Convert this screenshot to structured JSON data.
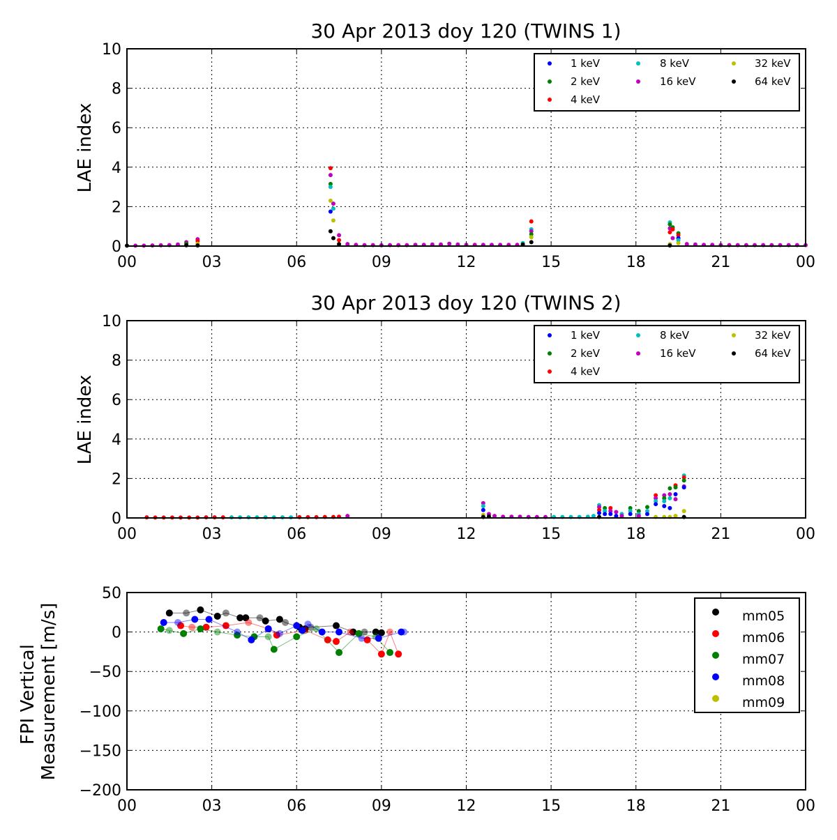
{
  "chart_data": [
    {
      "type": "scatter",
      "title": "30 Apr 2013 doy 120 (TWINS 1)",
      "ylabel": "LAE index",
      "ylim": [
        0,
        10
      ],
      "yticks": [
        "0",
        "2",
        "4",
        "6",
        "8",
        "10"
      ],
      "xlim": [
        0,
        24
      ],
      "xticks": [
        "00",
        "03",
        "06",
        "09",
        "12",
        "15",
        "18",
        "21",
        "00"
      ],
      "grid": true,
      "legend_position": "top-right",
      "series": [
        {
          "name": "1 keV",
          "color": "#0000ff"
        },
        {
          "name": "2 keV",
          "color": "#008000"
        },
        {
          "name": "4 keV",
          "color": "#ff0000"
        },
        {
          "name": "8 keV",
          "color": "#00bfbf"
        },
        {
          "name": "16 keV",
          "color": "#bf00bf"
        },
        {
          "name": "32 keV",
          "color": "#bfbf00"
        },
        {
          "name": "64 keV",
          "color": "#000000"
        }
      ],
      "points": [
        [
          0.0,
          0.02,
          6
        ],
        [
          0.3,
          0.02,
          4
        ],
        [
          0.6,
          0.02,
          4
        ],
        [
          0.9,
          0.03,
          4
        ],
        [
          1.2,
          0.04,
          4
        ],
        [
          1.5,
          0.05,
          4
        ],
        [
          1.8,
          0.08,
          4
        ],
        [
          2.1,
          0.2,
          4
        ],
        [
          2.1,
          0.12,
          1
        ],
        [
          2.1,
          0.04,
          6
        ],
        [
          2.5,
          0.35,
          4
        ],
        [
          2.5,
          0.25,
          2
        ],
        [
          2.5,
          0.12,
          5
        ],
        [
          2.5,
          0.03,
          6
        ],
        [
          7.2,
          3.95,
          2
        ],
        [
          7.2,
          3.6,
          4
        ],
        [
          7.2,
          3.15,
          1
        ],
        [
          7.2,
          3.0,
          3
        ],
        [
          7.2,
          2.3,
          5
        ],
        [
          7.2,
          1.75,
          0
        ],
        [
          7.2,
          0.75,
          6
        ],
        [
          7.3,
          2.15,
          4
        ],
        [
          7.3,
          1.9,
          3
        ],
        [
          7.3,
          1.3,
          5
        ],
        [
          7.3,
          0.4,
          6
        ],
        [
          7.5,
          0.55,
          4
        ],
        [
          7.5,
          0.3,
          2
        ],
        [
          7.5,
          0.1,
          6
        ],
        [
          7.8,
          0.1,
          4
        ],
        [
          8.1,
          0.06,
          4
        ],
        [
          8.4,
          0.05,
          4
        ],
        [
          8.7,
          0.05,
          4
        ],
        [
          9.0,
          0.04,
          4
        ],
        [
          9.3,
          0.05,
          4
        ],
        [
          9.6,
          0.05,
          4
        ],
        [
          9.9,
          0.05,
          4
        ],
        [
          10.2,
          0.06,
          4
        ],
        [
          10.5,
          0.06,
          4
        ],
        [
          10.8,
          0.08,
          4
        ],
        [
          11.1,
          0.08,
          4
        ],
        [
          11.4,
          0.12,
          4
        ],
        [
          11.7,
          0.08,
          4
        ],
        [
          12.0,
          0.06,
          4
        ],
        [
          12.3,
          0.06,
          4
        ],
        [
          12.6,
          0.06,
          4
        ],
        [
          12.9,
          0.06,
          4
        ],
        [
          13.2,
          0.06,
          4
        ],
        [
          13.5,
          0.06,
          4
        ],
        [
          13.8,
          0.06,
          4
        ],
        [
          14.0,
          0.15,
          3
        ],
        [
          14.0,
          0.08,
          6
        ],
        [
          14.3,
          1.25,
          2
        ],
        [
          14.3,
          0.85,
          3
        ],
        [
          14.3,
          0.75,
          4
        ],
        [
          14.3,
          0.6,
          1
        ],
        [
          14.3,
          0.45,
          5
        ],
        [
          14.3,
          0.2,
          6
        ],
        [
          19.2,
          1.2,
          3
        ],
        [
          19.2,
          1.1,
          1
        ],
        [
          19.2,
          0.9,
          4
        ],
        [
          19.2,
          0.7,
          2
        ],
        [
          19.2,
          0.1,
          5
        ],
        [
          19.2,
          0.03,
          6
        ],
        [
          19.3,
          0.95,
          1
        ],
        [
          19.3,
          0.85,
          2
        ],
        [
          19.3,
          0.4,
          4
        ],
        [
          19.5,
          0.65,
          1
        ],
        [
          19.5,
          0.55,
          2
        ],
        [
          19.5,
          0.4,
          0
        ],
        [
          19.5,
          0.3,
          3
        ],
        [
          19.5,
          0.15,
          5
        ],
        [
          19.8,
          0.1,
          4
        ],
        [
          20.1,
          0.08,
          4
        ],
        [
          20.4,
          0.06,
          4
        ],
        [
          20.7,
          0.06,
          4
        ],
        [
          21.0,
          0.05,
          4
        ],
        [
          21.3,
          0.05,
          4
        ],
        [
          21.6,
          0.05,
          4
        ],
        [
          21.9,
          0.05,
          4
        ],
        [
          22.2,
          0.05,
          4
        ],
        [
          22.5,
          0.05,
          4
        ],
        [
          22.8,
          0.05,
          4
        ],
        [
          23.1,
          0.05,
          4
        ],
        [
          23.4,
          0.05,
          4
        ],
        [
          23.7,
          0.05,
          4
        ],
        [
          24.0,
          0.05,
          4
        ]
      ]
    },
    {
      "type": "scatter",
      "title": "30 Apr 2013 doy 120 (TWINS 2)",
      "ylabel": "LAE index",
      "ylim": [
        0,
        10
      ],
      "yticks": [
        "0",
        "2",
        "4",
        "6",
        "8",
        "10"
      ],
      "xlim": [
        0,
        24
      ],
      "xticks": [
        "00",
        "03",
        "06",
        "09",
        "12",
        "15",
        "18",
        "21",
        "00"
      ],
      "grid": true,
      "legend_position": "top-right",
      "series": [
        {
          "name": "1 keV",
          "color": "#0000ff"
        },
        {
          "name": "2 keV",
          "color": "#008000"
        },
        {
          "name": "4 keV",
          "color": "#ff0000"
        },
        {
          "name": "8 keV",
          "color": "#00bfbf"
        },
        {
          "name": "16 keV",
          "color": "#bf00bf"
        },
        {
          "name": "32 keV",
          "color": "#bfbf00"
        },
        {
          "name": "64 keV",
          "color": "#000000"
        }
      ],
      "points": [
        [
          0.7,
          0.03,
          2
        ],
        [
          1.0,
          0.02,
          2
        ],
        [
          1.3,
          0.02,
          2
        ],
        [
          1.6,
          0.02,
          2
        ],
        [
          1.9,
          0.02,
          2
        ],
        [
          2.2,
          0.02,
          2
        ],
        [
          2.5,
          0.02,
          2
        ],
        [
          2.8,
          0.03,
          2
        ],
        [
          3.1,
          0.03,
          2
        ],
        [
          3.4,
          0.03,
          2
        ],
        [
          3.7,
          0.03,
          3
        ],
        [
          4.0,
          0.03,
          3
        ],
        [
          4.3,
          0.03,
          3
        ],
        [
          4.6,
          0.03,
          3
        ],
        [
          4.9,
          0.03,
          3
        ],
        [
          5.2,
          0.03,
          3
        ],
        [
          5.5,
          0.03,
          3
        ],
        [
          5.8,
          0.03,
          3
        ],
        [
          6.1,
          0.04,
          2
        ],
        [
          6.4,
          0.04,
          2
        ],
        [
          6.7,
          0.04,
          2
        ],
        [
          7.0,
          0.05,
          2
        ],
        [
          7.3,
          0.05,
          2
        ],
        [
          7.5,
          0.06,
          2
        ],
        [
          7.8,
          0.1,
          4
        ],
        [
          12.6,
          0.75,
          4
        ],
        [
          12.6,
          0.6,
          3
        ],
        [
          12.6,
          0.4,
          0
        ],
        [
          12.6,
          0.15,
          5
        ],
        [
          12.6,
          0.05,
          6
        ],
        [
          12.8,
          0.2,
          4
        ],
        [
          12.8,
          0.08,
          6
        ],
        [
          13.0,
          0.1,
          4
        ],
        [
          13.3,
          0.06,
          4
        ],
        [
          13.6,
          0.06,
          4
        ],
        [
          13.9,
          0.06,
          4
        ],
        [
          14.2,
          0.05,
          4
        ],
        [
          14.5,
          0.05,
          4
        ],
        [
          14.8,
          0.05,
          4
        ],
        [
          15.1,
          0.05,
          3
        ],
        [
          15.4,
          0.05,
          3
        ],
        [
          15.7,
          0.05,
          3
        ],
        [
          16.0,
          0.05,
          3
        ],
        [
          16.3,
          0.06,
          3
        ],
        [
          16.5,
          0.1,
          3
        ],
        [
          16.7,
          0.65,
          3
        ],
        [
          16.7,
          0.55,
          4
        ],
        [
          16.7,
          0.4,
          2
        ],
        [
          16.7,
          0.25,
          0
        ],
        [
          16.7,
          0.05,
          6
        ],
        [
          16.9,
          0.5,
          1
        ],
        [
          16.9,
          0.35,
          3
        ],
        [
          16.9,
          0.2,
          0
        ],
        [
          17.1,
          0.5,
          2
        ],
        [
          17.1,
          0.35,
          4
        ],
        [
          17.1,
          0.2,
          0
        ],
        [
          17.3,
          0.3,
          4
        ],
        [
          17.3,
          0.1,
          0
        ],
        [
          17.5,
          0.2,
          3
        ],
        [
          17.5,
          0.1,
          4
        ],
        [
          17.8,
          0.5,
          1
        ],
        [
          17.8,
          0.35,
          3
        ],
        [
          17.8,
          0.2,
          0
        ],
        [
          18.1,
          0.35,
          1
        ],
        [
          18.1,
          0.2,
          3
        ],
        [
          18.1,
          0.1,
          4
        ],
        [
          18.4,
          0.55,
          1
        ],
        [
          18.4,
          0.35,
          3
        ],
        [
          18.4,
          0.2,
          0
        ],
        [
          18.7,
          1.15,
          2
        ],
        [
          18.7,
          1.0,
          4
        ],
        [
          18.7,
          0.85,
          3
        ],
        [
          18.7,
          0.7,
          0
        ],
        [
          18.7,
          0.05,
          5
        ],
        [
          19.0,
          1.15,
          4
        ],
        [
          19.0,
          1.0,
          1
        ],
        [
          19.0,
          0.85,
          3
        ],
        [
          19.0,
          0.6,
          0
        ],
        [
          19.0,
          0.05,
          5
        ],
        [
          19.2,
          1.5,
          1
        ],
        [
          19.2,
          1.2,
          4
        ],
        [
          19.2,
          1.0,
          3
        ],
        [
          19.2,
          0.5,
          0
        ],
        [
          19.2,
          0.05,
          5
        ],
        [
          19.4,
          1.65,
          2
        ],
        [
          19.4,
          1.55,
          1
        ],
        [
          19.4,
          1.2,
          0
        ],
        [
          19.4,
          0.95,
          4
        ],
        [
          19.4,
          0.1,
          5
        ],
        [
          19.7,
          2.15,
          3
        ],
        [
          19.7,
          2.05,
          2
        ],
        [
          19.7,
          1.9,
          1
        ],
        [
          19.7,
          1.6,
          4
        ],
        [
          19.7,
          1.55,
          0
        ],
        [
          19.7,
          0.35,
          5
        ],
        [
          19.7,
          0.05,
          6
        ]
      ]
    },
    {
      "type": "line",
      "ylabel": "FPI Vertical\nMeasurement [m/s]",
      "ylim": [
        -200,
        50
      ],
      "yticks": [
        "50",
        "0",
        "−50",
        "−100",
        "−150",
        "−200"
      ],
      "xlim": [
        0,
        24
      ],
      "xticks": [
        "00",
        "03",
        "06",
        "09",
        "12",
        "15",
        "18",
        "21",
        "00"
      ],
      "grid": true,
      "legend_position": "top-right",
      "series": [
        {
          "name": "mm05",
          "color": "#000000",
          "x": [
            1.5,
            2.1,
            2.6,
            3.2,
            3.5,
            4.0,
            4.2,
            4.7,
            4.9,
            5.4,
            5.6,
            6.1,
            6.3,
            6.5,
            7.4,
            8.0,
            8.4,
            8.8,
            9.0
          ],
          "y": [
            24,
            24,
            28,
            20,
            24,
            18,
            18,
            18,
            14,
            16,
            12,
            6,
            4,
            6,
            8,
            0,
            0,
            0,
            -1
          ]
        },
        {
          "name": "mm06",
          "color": "#ff0000",
          "x": [
            1.9,
            2.3,
            2.8,
            3.5,
            4.3,
            5.0,
            5.3,
            6.3,
            7.1,
            7.4,
            7.9,
            8.5,
            9.0,
            9.3,
            9.6
          ],
          "y": [
            8,
            6,
            6,
            8,
            12,
            4,
            -4,
            2,
            -10,
            -12,
            0,
            -10,
            -28,
            0,
            -28
          ]
        },
        {
          "name": "mm07",
          "color": "#008000",
          "x": [
            1.2,
            1.5,
            2.0,
            2.6,
            3.2,
            3.9,
            4.5,
            5.0,
            5.2,
            6.0,
            6.7,
            7.5,
            8.2,
            8.8,
            9.3
          ],
          "y": [
            4,
            2,
            -2,
            4,
            0,
            -4,
            -6,
            -6,
            -22,
            -6,
            4,
            -26,
            -2,
            -6,
            -26
          ]
        },
        {
          "name": "mm08",
          "color": "#0000ff",
          "x": [
            1.3,
            1.8,
            2.4,
            2.9,
            3.9,
            4.4,
            5.0,
            5.4,
            6.0,
            6.2,
            6.4,
            6.9,
            7.5,
            8.3,
            8.9,
            9.7,
            9.8
          ],
          "y": [
            12,
            12,
            16,
            16,
            0,
            -10,
            4,
            -2,
            8,
            2,
            10,
            0,
            0,
            -8,
            -8,
            0,
            0
          ]
        },
        {
          "name": "mm09",
          "color": "#bfbf00",
          "x": [],
          "y": []
        }
      ]
    }
  ]
}
